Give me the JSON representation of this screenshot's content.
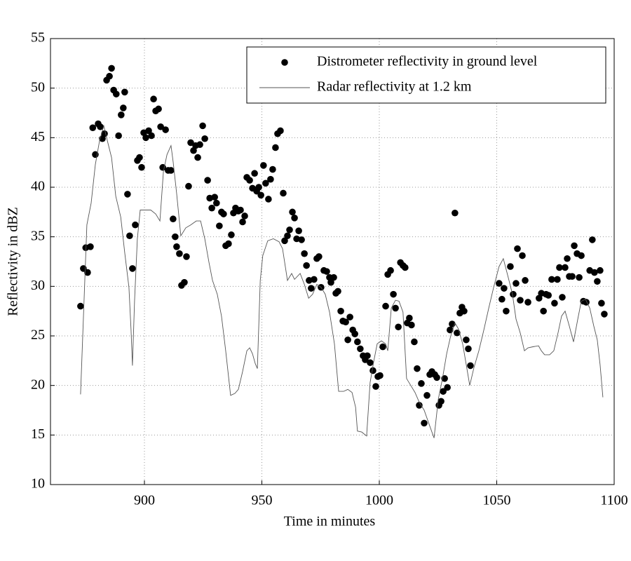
{
  "chart_data": {
    "type": "scatter",
    "x_label": "Time in minutes",
    "y_label": "Reflectivity in dBZ",
    "xlim": [
      860,
      1100
    ],
    "xticks": [
      900,
      950,
      1000,
      1050,
      1100
    ],
    "ylim": [
      10,
      55
    ],
    "yticks": [
      10,
      15,
      20,
      25,
      30,
      35,
      40,
      45,
      50,
      55
    ],
    "grid": true,
    "legend": "upper right",
    "series": [
      {
        "name": "Distrometer reflectivity in ground level",
        "type": "scatter",
        "color": "#000000",
        "x": [
          872.8,
          874,
          875,
          875.8,
          877,
          878,
          879.1,
          880.3,
          881.2,
          882.1,
          883,
          883.9,
          885.1,
          886,
          886.9,
          888,
          889,
          890.1,
          891,
          891.6,
          892.8,
          893.7,
          894.9,
          896.1,
          897,
          897.9,
          898.8,
          899.7,
          900.6,
          901.8,
          903,
          903.9,
          904.8,
          906,
          906.9,
          907.8,
          909,
          910.1,
          911.3,
          912.2,
          913.1,
          913.7,
          914.9,
          915.8,
          917,
          917.9,
          918.8,
          919.7,
          920.9,
          921.8,
          922.7,
          923.6,
          924.8,
          925.7,
          926.9,
          927.8,
          928.7,
          929.9,
          930.7,
          931.9,
          932.8,
          933.7,
          934.6,
          935.8,
          937,
          937.9,
          938.8,
          940,
          940.9,
          941.8,
          942.7,
          943.6,
          944.8,
          946,
          946.9,
          947.8,
          948.7,
          949.6,
          950.7,
          951.6,
          952.8,
          953.7,
          954.6,
          955.8,
          956.7,
          957.9,
          959.1,
          959.7,
          960.9,
          961.8,
          963,
          963.9,
          964.8,
          965.7,
          966.9,
          968.1,
          969,
          970.1,
          971,
          972.2,
          973.4,
          974.3,
          975.2,
          976.4,
          977.6,
          978.8,
          979.4,
          980.6,
          981.5,
          982.4,
          983.6,
          984.5,
          985.7,
          986.6,
          987.5,
          988.7,
          989.6,
          990.7,
          991.9,
          993.1,
          994,
          994.9,
          996.1,
          997.3,
          998.5,
          999.4,
          1000.3,
          1001.5,
          1002.7,
          1003.6,
          1004.8,
          1006,
          1006.9,
          1008.1,
          1009,
          1010.1,
          1011,
          1011.9,
          1012.8,
          1013.7,
          1014.9,
          1016.1,
          1017,
          1017.9,
          1019.1,
          1020.3,
          1021.5,
          1022.4,
          1023.6,
          1024.5,
          1025.4,
          1026.3,
          1027.2,
          1027.8,
          1029,
          1030.1,
          1031,
          1032.2,
          1033.1,
          1034.3,
          1035.2,
          1036.1,
          1037,
          1037.9,
          1038.8,
          1051,
          1052.2,
          1053.1,
          1054,
          1055.8,
          1057,
          1058.2,
          1058.8,
          1060,
          1060.9,
          1062.1,
          1063.3,
          1068,
          1069,
          1069.9,
          1071,
          1072,
          1073.4,
          1074.6,
          1075.8,
          1076.7,
          1077.9,
          1079.1,
          1080,
          1080.9,
          1082.1,
          1083,
          1084.2,
          1085.1,
          1086,
          1086.9,
          1088.1,
          1089.6,
          1090.7,
          1091.6,
          1092.8,
          1094,
          1094.6,
          1095.8
        ],
        "values": [
          28,
          31.8,
          33.9,
          31.4,
          34,
          46,
          43.3,
          46.4,
          46.1,
          44.9,
          45.4,
          50.8,
          51.2,
          52,
          49.8,
          49.4,
          45.2,
          47.3,
          48,
          49.6,
          39.3,
          35.1,
          31.8,
          36.2,
          42.7,
          43,
          42,
          45.5,
          45,
          45.7,
          45.2,
          48.9,
          47.7,
          47.9,
          46.1,
          42,
          45.8,
          41.7,
          41.7,
          36.8,
          35,
          34,
          33.3,
          30.1,
          30.4,
          33,
          40.1,
          44.5,
          43.7,
          44.2,
          43,
          44.3,
          46.2,
          44.9,
          40.7,
          38.9,
          37.9,
          39,
          38.4,
          36.1,
          37.5,
          37.3,
          34.1,
          34.3,
          35.2,
          37.4,
          37.9,
          37.6,
          37.7,
          36.5,
          37.1,
          41,
          40.7,
          39.9,
          41.4,
          39.6,
          40,
          39.2,
          42.2,
          40.4,
          38.8,
          40.8,
          41.8,
          44,
          45.4,
          45.7,
          39.4,
          34.6,
          35.1,
          35.7,
          37.5,
          36.9,
          34.8,
          35.6,
          34.7,
          33.3,
          32.1,
          30.6,
          29.8,
          30.7,
          32.8,
          33,
          29.9,
          31.6,
          31.5,
          30.9,
          30.4,
          30.9,
          29.3,
          29.5,
          27.5,
          26.5,
          26.4,
          24.6,
          26.9,
          25.6,
          25.2,
          24.4,
          23.7,
          23,
          22.6,
          23,
          22.3,
          21.5,
          19.9,
          20.9,
          21,
          23.9,
          28,
          31.2,
          31.6,
          29.2,
          27.8,
          25.9,
          32.4,
          32.1,
          31.9,
          26.3,
          26.8,
          26.1,
          24.4,
          21.7,
          18,
          20.2,
          16.2,
          19,
          21.1,
          21.4,
          21.1,
          20.8,
          18,
          18.4,
          19.4,
          20.7,
          19.8,
          25.6,
          26.2,
          37.4,
          25.3,
          27.3,
          27.9,
          27.5,
          24.6,
          23.7,
          22,
          30.3,
          28.7,
          29.8,
          27.5,
          32,
          29.2,
          30.3,
          33.8,
          28.6,
          33.1,
          30.6,
          28.4,
          28.8,
          29.3,
          27.5,
          29.2,
          29.1,
          30.7,
          28.3,
          30.7,
          31.9,
          28.9,
          31.9,
          32.8,
          31,
          31,
          34.1,
          33.3,
          30.9,
          33.1,
          28.5,
          28.4,
          31.6,
          34.7,
          31.4,
          30.5,
          31.6,
          28.3,
          27.2
        ]
      },
      {
        "name": "Radar reflectivity at 1.2 km",
        "type": "line",
        "color": "#555555",
        "x": [
          872.8,
          874,
          875.5,
          877.3,
          879.1,
          880.9,
          882.7,
          884.2,
          886,
          887.8,
          889.9,
          891.6,
          893.4,
          894.3,
          894.9,
          895.8,
          897,
          898.2,
          899.7,
          902.7,
          904.8,
          906.6,
          908.1,
          909.6,
          911.3,
          912.2,
          913.7,
          915.5,
          917.6,
          919.7,
          922.1,
          923.9,
          925.7,
          927.5,
          929,
          931,
          932.8,
          934.6,
          936.7,
          938.5,
          940,
          941.8,
          943.6,
          944.8,
          946,
          947.2,
          948.1,
          949.3,
          950.4,
          952.5,
          954.9,
          957.3,
          958.8,
          960.9,
          962.7,
          963.9,
          966.3,
          968.1,
          969.9,
          971.6,
          973.4,
          975.2,
          977,
          978.8,
          980.9,
          982.7,
          984.8,
          986.6,
          988.4,
          989.9,
          990.7,
          992.5,
          994.6,
          996.1,
          997.6,
          999.1,
          1000.9,
          1002.7,
          1003.6,
          1005.1,
          1006.9,
          1008.4,
          1010.1,
          1011.6,
          1013.4,
          1015.2,
          1017,
          1019.1,
          1021.2,
          1023.3,
          1025.1,
          1026.9,
          1028.7,
          1030.4,
          1032.2,
          1033.7,
          1035.5,
          1037,
          1038.5,
          1040.3,
          1042.4,
          1044.5,
          1046.6,
          1048.7,
          1051,
          1052.8,
          1054.9,
          1056.7,
          1058.2,
          1060,
          1061.8,
          1063.3,
          1065.4,
          1067.8,
          1069,
          1070.4,
          1072.5,
          1074.3,
          1076.1,
          1077.6,
          1079.1,
          1080.9,
          1082.7,
          1084.5,
          1086,
          1087.8,
          1089.6,
          1091.3,
          1092.8,
          1094,
          1095.2
        ],
        "values": [
          19.1,
          26.7,
          36.2,
          38.4,
          42.3,
          44.7,
          46.2,
          44.7,
          43,
          39.1,
          37,
          33.4,
          29.9,
          25.6,
          22,
          28.5,
          34.8,
          37.7,
          37.7,
          37.7,
          37.3,
          36.6,
          41.6,
          43.3,
          44.2,
          42.6,
          39.4,
          35.1,
          35.9,
          36.2,
          36.6,
          36.6,
          34.8,
          32.4,
          30.6,
          29.2,
          27,
          23.5,
          19,
          19.2,
          19.6,
          21.4,
          23.5,
          23.8,
          23.2,
          22.2,
          21.7,
          30.6,
          33.1,
          34.6,
          34.8,
          34.5,
          33.8,
          30.6,
          31.3,
          30.7,
          31.3,
          30.2,
          28.8,
          29.2,
          30.2,
          29.9,
          29.2,
          27.4,
          24.2,
          19.4,
          19.4,
          19.6,
          19.3,
          17.8,
          15.4,
          15.3,
          14.9,
          20.3,
          22.4,
          24.2,
          24.5,
          24.2,
          23.5,
          27.8,
          28.6,
          28.5,
          27.4,
          20.7,
          20,
          19.3,
          18.3,
          17.5,
          16.1,
          14.7,
          18.6,
          20.7,
          23.2,
          25,
          26.3,
          25.7,
          24.2,
          22.1,
          20,
          21.8,
          23.5,
          25.6,
          27.8,
          29.9,
          32,
          32.8,
          30.9,
          29.2,
          26.7,
          25.3,
          23.5,
          23.8,
          23.9,
          24,
          23.5,
          23.1,
          23.1,
          23.5,
          25.3,
          27,
          27.5,
          26,
          24.4,
          26.7,
          28.5,
          28.7,
          27.8,
          26,
          24.6,
          22.1,
          18.8
        ]
      }
    ]
  }
}
